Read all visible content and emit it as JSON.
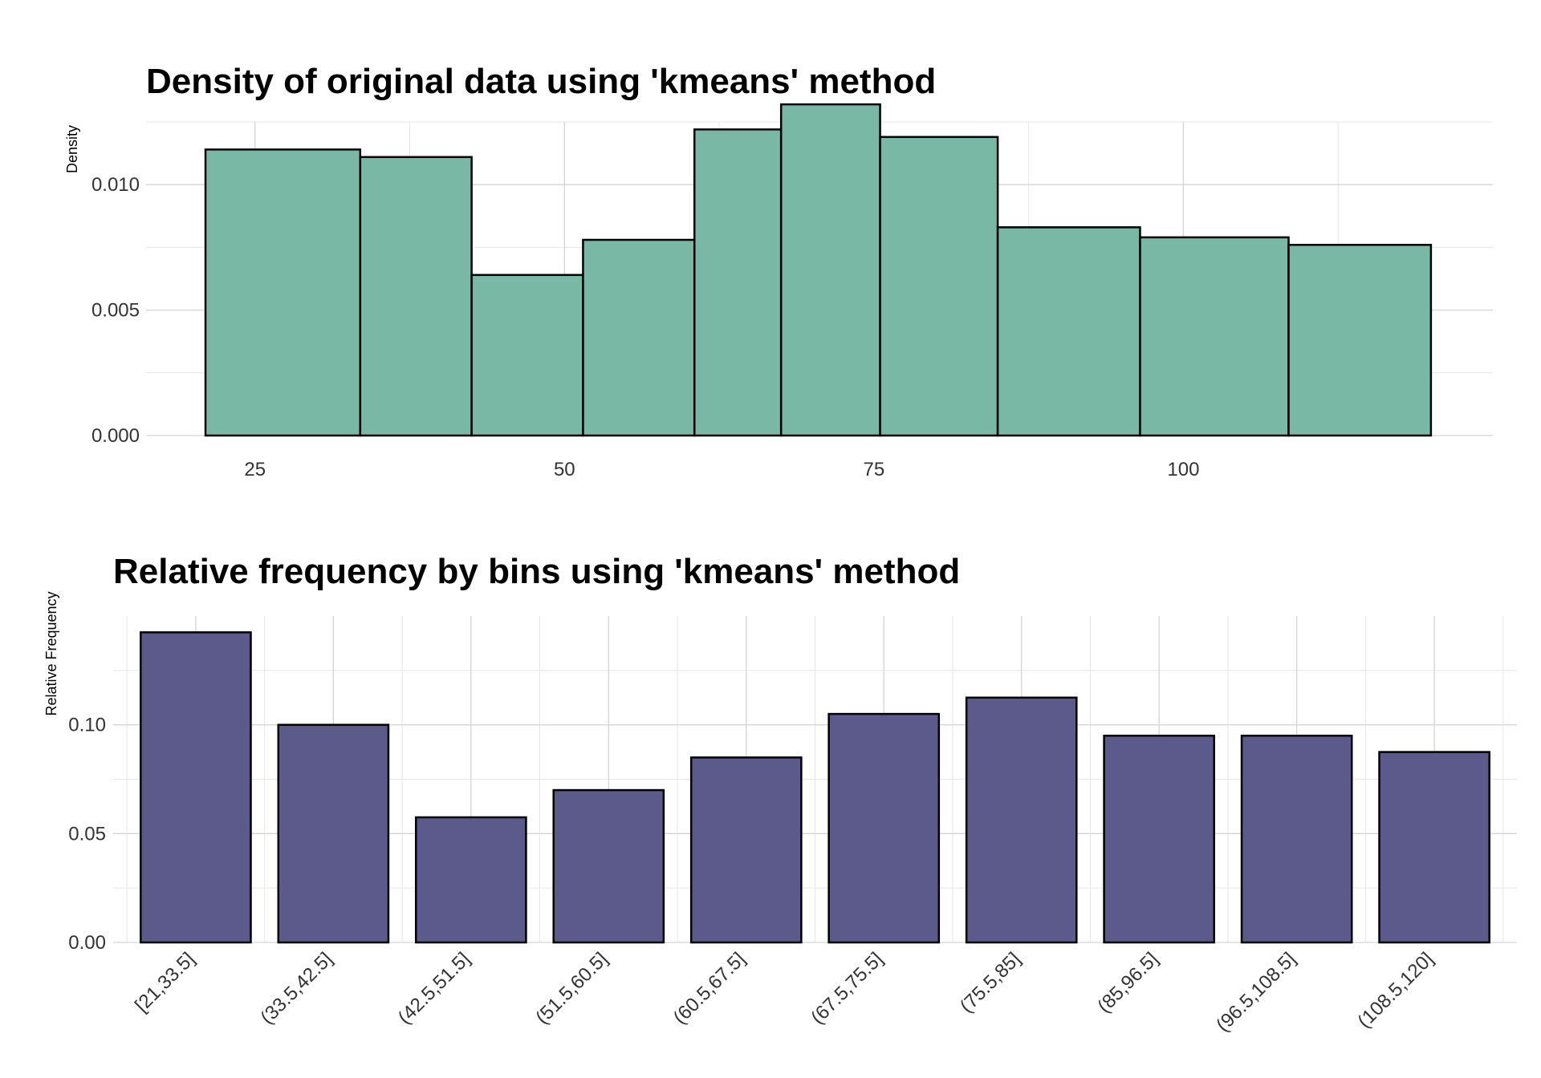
{
  "chart_data": [
    {
      "type": "bar",
      "title": "Density of original data using 'kmeans' method",
      "xlabel": "",
      "ylabel": "Density",
      "bin_edges": [
        21,
        33.5,
        42.5,
        51.5,
        60.5,
        67.5,
        75.5,
        85,
        96.5,
        108.5,
        120
      ],
      "values": [
        0.0114,
        0.0111,
        0.0064,
        0.0078,
        0.0122,
        0.0132,
        0.0119,
        0.0083,
        0.0079,
        0.0076
      ],
      "xlim": [
        16.2,
        125
      ],
      "ylim": [
        0,
        0.0125
      ],
      "x_ticks": [
        25,
        50,
        75,
        100
      ],
      "x_tick_labels": [
        "25",
        "50",
        "75",
        "100"
      ],
      "y_ticks": [
        0,
        0.005,
        0.01
      ],
      "y_tick_labels": [
        "0.000",
        "0.005",
        "0.010"
      ],
      "fill_color": "#7ab8a6",
      "edge_color": "#000000",
      "grid": true
    },
    {
      "type": "bar",
      "title": "Relative frequency by bins using 'kmeans' method",
      "xlabel": "",
      "ylabel": "Relative Frequency",
      "categories": [
        "[21,33.5]",
        "(33.5,42.5]",
        "(42.5,51.5]",
        "(51.5,60.5]",
        "(60.5,67.5]",
        "(67.5,75.5]",
        "(75.5,85]",
        "(85,96.5]",
        "(96.5,108.5]",
        "(108.5,120]"
      ],
      "values": [
        0.1425,
        0.1,
        0.0575,
        0.07,
        0.085,
        0.105,
        0.1125,
        0.095,
        0.095,
        0.0875
      ],
      "ylim": [
        0,
        0.15
      ],
      "y_ticks": [
        0,
        0.05,
        0.1
      ],
      "y_tick_labels": [
        "0.00",
        "0.05",
        "0.10"
      ],
      "fill_color": "#5b5a8b",
      "edge_color": "#000000",
      "grid": true
    }
  ]
}
